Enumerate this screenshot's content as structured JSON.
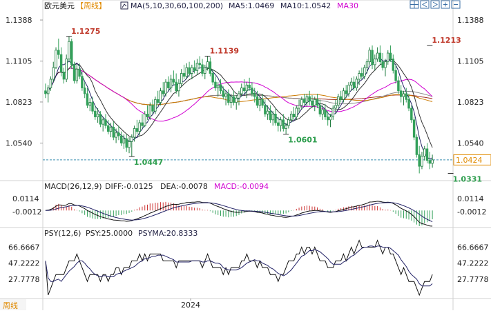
{
  "header": {
    "symbol": "欧元美元",
    "period": "【周线】",
    "ma_label": "MA(5,10,30,60,100,200)",
    "ma5": "MA5:1.0469",
    "ma10": "MA10:1.0542",
    "ma30": "MA30"
  },
  "macd_header": {
    "title": "MACD(26,12,9)",
    "diff": "DIFF:-0.0125",
    "dea": "DEA:-0.0078",
    "macd": "MACD:-0.0094"
  },
  "psy_header": {
    "title": "PSY(12,6)",
    "psy": "PSY:25.0000",
    "psyma": "PSYMA:20.8333"
  },
  "footer": {
    "period_button": "周线",
    "x_label": "2024"
  },
  "colors": {
    "up": "#1e7b3e",
    "down": "#33a05a",
    "ma5": "#222266",
    "ma10": "#333333",
    "ma30": "#d100d1",
    "ma60": "#cc7a00",
    "ma100": "#888888",
    "ma200": "#a03020",
    "macd_pos": "#cc3333",
    "macd_neg": "#33a05a",
    "price_tag": "#e08a00",
    "period": "#e08a00"
  },
  "toolbar": {
    "icons": [
      "grid-icon",
      "arrow-left-icon",
      "arrow-right-icon",
      "zoom-in-icon",
      "zoom-out-icon"
    ]
  },
  "chart_data": {
    "type": "candlestick",
    "price_axis": {
      "ticks": [
        "1.1388",
        "1.1105",
        "1.0823",
        "1.0540"
      ],
      "ylim": [
        1.03,
        1.145
      ]
    },
    "current_price": "1.0424",
    "annotations": [
      {
        "label": "1.1275",
        "value": 1.1275,
        "index": 9
      },
      {
        "label": "1.1139",
        "value": 1.1139,
        "index": 62
      },
      {
        "label": "1.0447",
        "value": 1.0447,
        "index": 33
      },
      {
        "label": "1.0601",
        "value": 1.0601,
        "index": 92
      },
      {
        "label": "1.1213",
        "value": 1.1213,
        "index": 147
      },
      {
        "label": "1.0331",
        "value": 1.0331,
        "index": 155
      }
    ],
    "candles": [
      [
        1.09,
        1.095,
        1.085,
        1.088
      ],
      [
        1.088,
        1.094,
        1.082,
        1.092
      ],
      [
        1.092,
        1.1,
        1.09,
        1.098
      ],
      [
        1.098,
        1.11,
        1.096,
        1.106
      ],
      [
        1.106,
        1.12,
        1.105,
        1.118
      ],
      [
        1.118,
        1.126,
        1.112,
        1.115
      ],
      [
        1.115,
        1.12,
        1.1,
        1.103
      ],
      [
        1.103,
        1.106,
        1.095,
        1.098
      ],
      [
        1.098,
        1.115,
        1.096,
        1.112
      ],
      [
        1.112,
        1.1275,
        1.11,
        1.124
      ],
      [
        1.124,
        1.126,
        1.105,
        1.108
      ],
      [
        1.108,
        1.11,
        1.095,
        1.097
      ],
      [
        1.097,
        1.108,
        1.095,
        1.105
      ],
      [
        1.105,
        1.109,
        1.098,
        1.1
      ],
      [
        1.1,
        1.103,
        1.09,
        1.092
      ],
      [
        1.092,
        1.096,
        1.085,
        1.088
      ],
      [
        1.088,
        1.092,
        1.078,
        1.08
      ],
      [
        1.08,
        1.085,
        1.076,
        1.082
      ],
      [
        1.082,
        1.086,
        1.074,
        1.076
      ],
      [
        1.076,
        1.08,
        1.07,
        1.072
      ],
      [
        1.072,
        1.078,
        1.068,
        1.074
      ],
      [
        1.074,
        1.076,
        1.065,
        1.067
      ],
      [
        1.067,
        1.072,
        1.062,
        1.07
      ],
      [
        1.07,
        1.074,
        1.064,
        1.066
      ],
      [
        1.066,
        1.07,
        1.06,
        1.062
      ],
      [
        1.062,
        1.068,
        1.058,
        1.065
      ],
      [
        1.065,
        1.069,
        1.056,
        1.058
      ],
      [
        1.058,
        1.064,
        1.054,
        1.061
      ],
      [
        1.061,
        1.066,
        1.056,
        1.059
      ],
      [
        1.059,
        1.062,
        1.052,
        1.054
      ],
      [
        1.054,
        1.06,
        1.05,
        1.057
      ],
      [
        1.057,
        1.06,
        1.048,
        1.051
      ],
      [
        1.051,
        1.058,
        1.047,
        1.055
      ],
      [
        1.055,
        1.06,
        1.0447,
        1.058
      ],
      [
        1.058,
        1.066,
        1.055,
        1.064
      ],
      [
        1.064,
        1.07,
        1.06,
        1.062
      ],
      [
        1.062,
        1.07,
        1.059,
        1.068
      ],
      [
        1.068,
        1.074,
        1.064,
        1.066
      ],
      [
        1.066,
        1.076,
        1.065,
        1.074
      ],
      [
        1.074,
        1.08,
        1.07,
        1.072
      ],
      [
        1.072,
        1.082,
        1.07,
        1.08
      ],
      [
        1.08,
        1.084,
        1.074,
        1.076
      ],
      [
        1.076,
        1.086,
        1.074,
        1.084
      ],
      [
        1.084,
        1.09,
        1.08,
        1.082
      ],
      [
        1.082,
        1.092,
        1.08,
        1.09
      ],
      [
        1.09,
        1.096,
        1.086,
        1.088
      ],
      [
        1.088,
        1.098,
        1.086,
        1.096
      ],
      [
        1.096,
        1.1,
        1.09,
        1.092
      ],
      [
        1.092,
        1.101,
        1.089,
        1.098
      ],
      [
        1.098,
        1.104,
        1.094,
        1.096
      ],
      [
        1.096,
        1.102,
        1.088,
        1.09
      ],
      [
        1.09,
        1.098,
        1.086,
        1.095
      ],
      [
        1.095,
        1.105,
        1.093,
        1.102
      ],
      [
        1.102,
        1.108,
        1.098,
        1.1
      ],
      [
        1.1,
        1.109,
        1.098,
        1.106
      ],
      [
        1.106,
        1.11,
        1.1,
        1.102
      ],
      [
        1.102,
        1.108,
        1.098,
        1.106
      ],
      [
        1.106,
        1.111,
        1.102,
        1.104
      ],
      [
        1.104,
        1.112,
        1.101,
        1.109
      ],
      [
        1.109,
        1.1139,
        1.105,
        1.108
      ],
      [
        1.108,
        1.112,
        1.1,
        1.102
      ],
      [
        1.102,
        1.108,
        1.098,
        1.106
      ],
      [
        1.106,
        1.1139,
        1.104,
        1.11
      ],
      [
        1.11,
        1.113,
        1.1,
        1.102
      ],
      [
        1.102,
        1.105,
        1.094,
        1.096
      ],
      [
        1.096,
        1.1,
        1.09,
        1.092
      ],
      [
        1.092,
        1.096,
        1.086,
        1.094
      ],
      [
        1.094,
        1.098,
        1.088,
        1.09
      ],
      [
        1.09,
        1.093,
        1.084,
        1.086
      ],
      [
        1.086,
        1.09,
        1.08,
        1.088
      ],
      [
        1.088,
        1.091,
        1.08,
        1.082
      ],
      [
        1.082,
        1.088,
        1.078,
        1.086
      ],
      [
        1.086,
        1.09,
        1.08,
        1.082
      ],
      [
        1.082,
        1.087,
        1.077,
        1.085
      ],
      [
        1.085,
        1.09,
        1.08,
        1.088
      ],
      [
        1.088,
        1.095,
        1.086,
        1.092
      ],
      [
        1.092,
        1.098,
        1.088,
        1.09
      ],
      [
        1.09,
        1.096,
        1.085,
        1.094
      ],
      [
        1.094,
        1.099,
        1.09,
        1.092
      ],
      [
        1.092,
        1.096,
        1.086,
        1.088
      ],
      [
        1.088,
        1.092,
        1.082,
        1.086
      ],
      [
        1.086,
        1.09,
        1.078,
        1.08
      ],
      [
        1.08,
        1.086,
        1.076,
        1.084
      ],
      [
        1.084,
        1.088,
        1.078,
        1.08
      ],
      [
        1.08,
        1.084,
        1.072,
        1.074
      ],
      [
        1.074,
        1.08,
        1.07,
        1.076
      ],
      [
        1.076,
        1.08,
        1.068,
        1.07
      ],
      [
        1.07,
        1.076,
        1.066,
        1.074
      ],
      [
        1.074,
        1.078,
        1.066,
        1.068
      ],
      [
        1.068,
        1.072,
        1.062,
        1.066
      ],
      [
        1.066,
        1.072,
        1.062,
        1.07
      ],
      [
        1.07,
        1.074,
        1.062,
        1.064
      ],
      [
        1.064,
        1.068,
        1.0601,
        1.066
      ],
      [
        1.066,
        1.072,
        1.064,
        1.07
      ],
      [
        1.07,
        1.076,
        1.068,
        1.074
      ],
      [
        1.074,
        1.079,
        1.07,
        1.072
      ],
      [
        1.072,
        1.08,
        1.07,
        1.078
      ],
      [
        1.078,
        1.084,
        1.075,
        1.08
      ],
      [
        1.08,
        1.086,
        1.077,
        1.084
      ],
      [
        1.084,
        1.088,
        1.08,
        1.082
      ],
      [
        1.082,
        1.088,
        1.079,
        1.086
      ],
      [
        1.086,
        1.09,
        1.08,
        1.083
      ],
      [
        1.083,
        1.087,
        1.078,
        1.08
      ],
      [
        1.08,
        1.086,
        1.076,
        1.084
      ],
      [
        1.084,
        1.088,
        1.078,
        1.08
      ],
      [
        1.08,
        1.084,
        1.072,
        1.074
      ],
      [
        1.074,
        1.08,
        1.07,
        1.077
      ],
      [
        1.077,
        1.081,
        1.07,
        1.072
      ],
      [
        1.072,
        1.076,
        1.066,
        1.07
      ],
      [
        1.07,
        1.074,
        1.065,
        1.072
      ],
      [
        1.072,
        1.08,
        1.07,
        1.078
      ],
      [
        1.078,
        1.084,
        1.074,
        1.08
      ],
      [
        1.08,
        1.088,
        1.078,
        1.086
      ],
      [
        1.086,
        1.09,
        1.082,
        1.084
      ],
      [
        1.084,
        1.092,
        1.082,
        1.09
      ],
      [
        1.09,
        1.094,
        1.085,
        1.088
      ],
      [
        1.088,
        1.096,
        1.086,
        1.094
      ],
      [
        1.094,
        1.099,
        1.09,
        1.096
      ],
      [
        1.096,
        1.1,
        1.09,
        1.092
      ],
      [
        1.092,
        1.1,
        1.09,
        1.098
      ],
      [
        1.098,
        1.104,
        1.094,
        1.102
      ],
      [
        1.102,
        1.106,
        1.098,
        1.1
      ],
      [
        1.1,
        1.108,
        1.098,
        1.106
      ],
      [
        1.106,
        1.112,
        1.102,
        1.11
      ],
      [
        1.11,
        1.12,
        1.108,
        1.118
      ],
      [
        1.118,
        1.1213,
        1.105,
        1.108
      ],
      [
        1.108,
        1.115,
        1.104,
        1.112
      ],
      [
        1.112,
        1.12,
        1.11,
        1.116
      ],
      [
        1.116,
        1.1213,
        1.108,
        1.11
      ],
      [
        1.11,
        1.116,
        1.104,
        1.106
      ],
      [
        1.106,
        1.112,
        1.1,
        1.11
      ],
      [
        1.11,
        1.118,
        1.108,
        1.116
      ],
      [
        1.116,
        1.1213,
        1.11,
        1.112
      ],
      [
        1.112,
        1.115,
        1.102,
        1.104
      ],
      [
        1.104,
        1.108,
        1.095,
        1.097
      ],
      [
        1.097,
        1.1,
        1.088,
        1.09
      ],
      [
        1.09,
        1.094,
        1.082,
        1.086
      ],
      [
        1.086,
        1.09,
        1.08,
        1.088
      ],
      [
        1.088,
        1.092,
        1.082,
        1.084
      ],
      [
        1.084,
        1.088,
        1.076,
        1.078
      ],
      [
        1.078,
        1.08,
        1.068,
        1.07
      ],
      [
        1.07,
        1.072,
        1.056,
        1.058
      ],
      [
        1.058,
        1.06,
        1.044,
        1.046
      ],
      [
        1.046,
        1.052,
        1.0331,
        1.038
      ],
      [
        1.038,
        1.048,
        1.036,
        1.045
      ],
      [
        1.045,
        1.052,
        1.042,
        1.05
      ],
      [
        1.05,
        1.054,
        1.04,
        1.042
      ],
      [
        1.042,
        1.048,
        1.036,
        1.04
      ],
      [
        1.04,
        1.046,
        1.037,
        1.0424
      ]
    ],
    "macd_axis": {
      "ticks": [
        "0.0114",
        "-0.0012"
      ],
      "ylim": [
        -0.015,
        0.018
      ]
    },
    "psy_axis": {
      "ticks": [
        "66.6667",
        "47.2222",
        "27.7778"
      ],
      "ylim": [
        5,
        78
      ]
    }
  }
}
